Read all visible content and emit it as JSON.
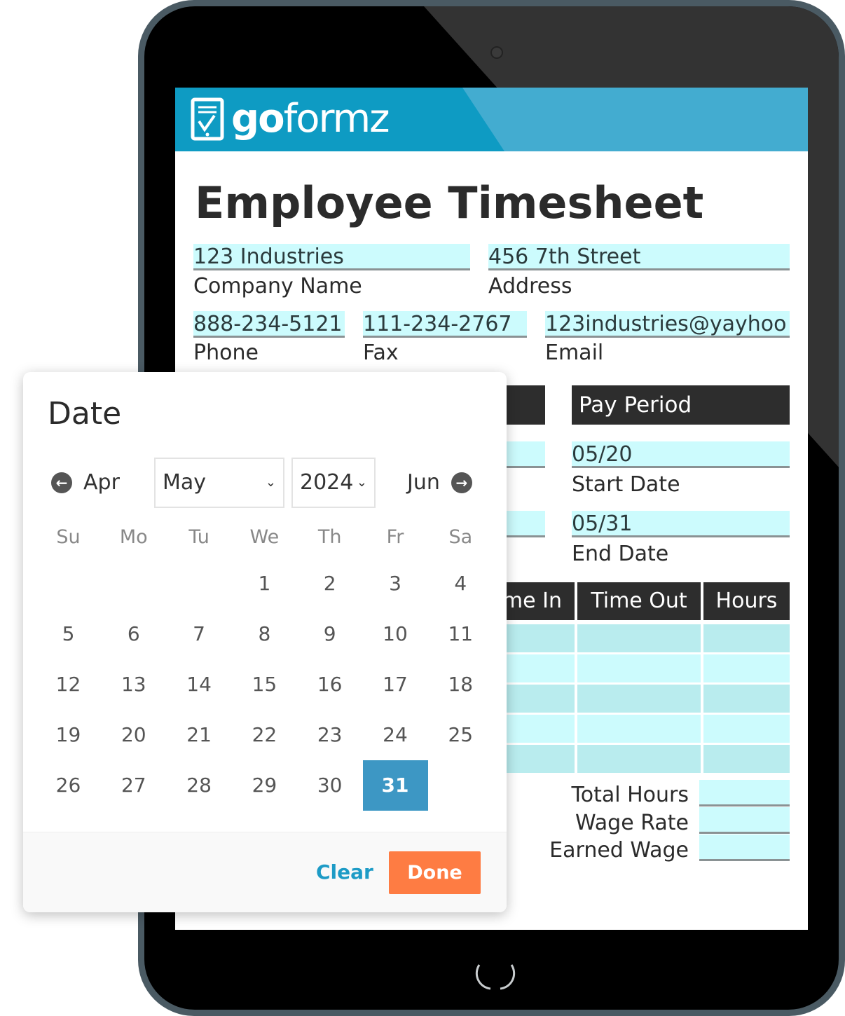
{
  "brand": {
    "logo_text_bold": "go",
    "logo_text": "formz",
    "colors": {
      "banner": "#0e9bc3",
      "accent": "#3d97c4",
      "done": "#fe7c43",
      "field": "#ccfbfd"
    }
  },
  "form": {
    "title": "Employee Timesheet",
    "company_name": {
      "value": "123 Industries",
      "label": "Company Name"
    },
    "address": {
      "value": "456 7th Street",
      "label": "Address"
    },
    "phone": {
      "value": "888-234-5121",
      "label": "Phone"
    },
    "fax": {
      "value": "111-234-2767",
      "label": "Fax"
    },
    "email": {
      "value": "123industries@yayhoo",
      "label": "Email"
    },
    "pay_period": {
      "header": "Pay Period",
      "start_value": "05/20",
      "start_label": "Start Date",
      "end_value": "05/31",
      "end_label": "End Date"
    },
    "table_headers": [
      "me In",
      "Time Out",
      "Hours"
    ],
    "totals": {
      "total_hours": "Total Hours",
      "wage_rate": "Wage Rate",
      "earned_wage": "Earned Wage"
    }
  },
  "datepicker": {
    "title": "Date",
    "prev_month": "Apr",
    "next_month": "Jun",
    "month": "May",
    "year": "2024",
    "weekdays": [
      "Su",
      "Mo",
      "Tu",
      "We",
      "Th",
      "Fr",
      "Sa"
    ],
    "first_weekday": 3,
    "days_in_month": 31,
    "selected_day": 31,
    "clear_label": "Clear",
    "done_label": "Done"
  }
}
